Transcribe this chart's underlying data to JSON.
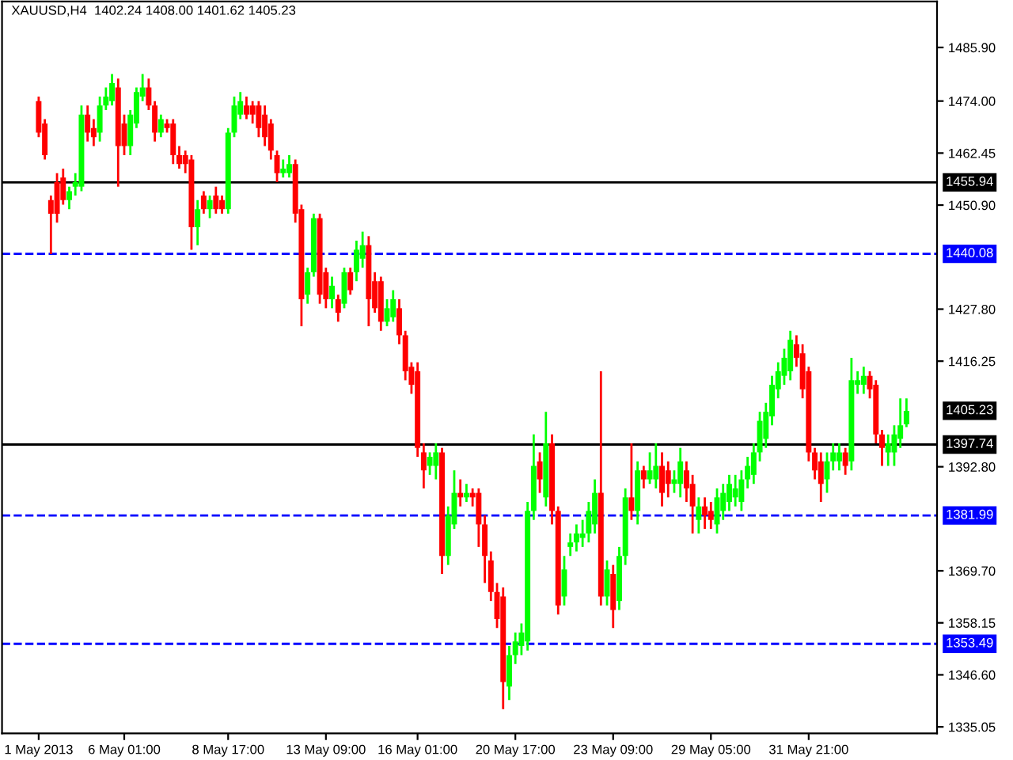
{
  "chart_data": {
    "type": "candlestick",
    "title": "XAUUSD,H4  1402.24 1408.00 1401.62 1405.23",
    "categories": [
      "1 May 2013",
      null,
      null,
      null,
      null,
      null,
      null,
      null,
      null,
      null,
      null,
      null,
      null,
      null,
      "6 May 01:00",
      null,
      null,
      null,
      null,
      null,
      null,
      null,
      null,
      null,
      null,
      null,
      null,
      null,
      null,
      null,
      null,
      "8 May 17:00",
      null,
      null,
      null,
      null,
      null,
      null,
      null,
      null,
      null,
      null,
      null,
      null,
      null,
      null,
      null,
      "13 May 09:00",
      null,
      null,
      null,
      null,
      null,
      null,
      null,
      null,
      null,
      null,
      null,
      null,
      null,
      null,
      "16 May 01:00",
      null,
      null,
      null,
      null,
      null,
      null,
      null,
      null,
      null,
      null,
      null,
      null,
      null,
      null,
      null,
      "20 May 17:00",
      null,
      null,
      null,
      null,
      null,
      null,
      null,
      null,
      null,
      null,
      null,
      null,
      null,
      null,
      null,
      "23 May 09:00",
      null,
      null,
      null,
      null,
      null,
      null,
      null,
      null,
      null,
      null,
      null,
      null,
      null,
      null,
      null,
      "29 May 05:00",
      null,
      null,
      null,
      null,
      null,
      null,
      null,
      null,
      null,
      null,
      null,
      null,
      null,
      null,
      null,
      "31 May 21:00",
      null,
      null,
      null,
      null,
      null,
      null,
      null,
      null,
      null,
      null,
      null,
      null,
      null,
      null,
      null,
      null
    ],
    "ohlc": [
      [
        1474,
        1475,
        1466,
        1467
      ],
      [
        1469,
        1470,
        1461,
        1462
      ],
      [
        1452,
        1453,
        1440,
        1449
      ],
      [
        1456,
        1458,
        1447,
        1449
      ],
      [
        1457,
        1459,
        1451,
        1452
      ],
      [
        1452,
        1455,
        1450,
        1454
      ],
      [
        1455,
        1458,
        1453,
        1456
      ],
      [
        1455,
        1473,
        1454,
        1471
      ],
      [
        1471,
        1473,
        1465,
        1467
      ],
      [
        1468,
        1470,
        1464,
        1466
      ],
      [
        1467,
        1475,
        1465,
        1473
      ],
      [
        1473,
        1477,
        1472,
        1475
      ],
      [
        1474,
        1480,
        1473,
        1478
      ],
      [
        1477,
        1479,
        1455,
        1464
      ],
      [
        1469,
        1471,
        1462,
        1464
      ],
      [
        1464,
        1472,
        1462,
        1471
      ],
      [
        1469,
        1477,
        1468,
        1476
      ],
      [
        1475,
        1480,
        1474,
        1477
      ],
      [
        1477,
        1479,
        1472,
        1473
      ],
      [
        1473,
        1474,
        1465,
        1467
      ],
      [
        1467,
        1471,
        1466,
        1470
      ],
      [
        1469,
        1470,
        1467,
        1468
      ],
      [
        1469,
        1470,
        1460,
        1462
      ],
      [
        1462,
        1464,
        1459,
        1460
      ],
      [
        1462,
        1463,
        1458,
        1460
      ],
      [
        1461,
        1462,
        1441,
        1446
      ],
      [
        1446,
        1452,
        1442,
        1450
      ],
      [
        1453,
        1454,
        1449,
        1450
      ],
      [
        1450,
        1453,
        1448,
        1452
      ],
      [
        1453,
        1455,
        1449,
        1450
      ],
      [
        1452,
        1453,
        1449,
        1450
      ],
      [
        1450,
        1468,
        1449,
        1467
      ],
      [
        1467,
        1475,
        1466,
        1473
      ],
      [
        1471,
        1476,
        1470,
        1474
      ],
      [
        1473,
        1475,
        1470,
        1471
      ],
      [
        1473,
        1474,
        1469,
        1471
      ],
      [
        1473,
        1474,
        1466,
        1468
      ],
      [
        1471,
        1473,
        1464,
        1466
      ],
      [
        1469,
        1470,
        1461,
        1463
      ],
      [
        1462,
        1463,
        1456,
        1458
      ],
      [
        1458,
        1461,
        1457,
        1459
      ],
      [
        1458,
        1462,
        1457,
        1460
      ],
      [
        1460,
        1461,
        1447,
        1449
      ],
      [
        1450,
        1451,
        1424,
        1430
      ],
      [
        1431,
        1437,
        1429,
        1436
      ],
      [
        1436,
        1449,
        1435,
        1448
      ],
      [
        1448,
        1449,
        1429,
        1431
      ],
      [
        1436,
        1437,
        1428,
        1430
      ],
      [
        1430,
        1435,
        1428,
        1433
      ],
      [
        1430,
        1431,
        1425,
        1427
      ],
      [
        1429,
        1437,
        1428,
        1436
      ],
      [
        1436,
        1437,
        1431,
        1432
      ],
      [
        1436,
        1443,
        1434,
        1441
      ],
      [
        1439,
        1445,
        1437,
        1442
      ],
      [
        1442,
        1444,
        1424,
        1430
      ],
      [
        1434,
        1436,
        1427,
        1428
      ],
      [
        1434,
        1435,
        1423,
        1425
      ],
      [
        1425,
        1430,
        1424,
        1428
      ],
      [
        1426,
        1432,
        1425,
        1430
      ],
      [
        1428,
        1430,
        1420,
        1422
      ],
      [
        1422,
        1423,
        1412,
        1414
      ],
      [
        1415,
        1416,
        1409,
        1411
      ],
      [
        1414,
        1416,
        1395,
        1397
      ],
      [
        1396,
        1398,
        1388,
        1392
      ],
      [
        1393,
        1396,
        1391,
        1395
      ],
      [
        1393,
        1398,
        1390,
        1396
      ],
      [
        1396,
        1397,
        1369,
        1373
      ],
      [
        1373,
        1384,
        1371,
        1382
      ],
      [
        1380,
        1392,
        1379,
        1387
      ],
      [
        1387,
        1390,
        1384,
        1386
      ],
      [
        1386,
        1389,
        1385,
        1387
      ],
      [
        1387,
        1388,
        1384,
        1386
      ],
      [
        1387,
        1388,
        1375,
        1380
      ],
      [
        1380,
        1382,
        1367,
        1373
      ],
      [
        1372,
        1374,
        1363,
        1365
      ],
      [
        1365,
        1367,
        1357,
        1359
      ],
      [
        1364,
        1366,
        1339,
        1345
      ],
      [
        1344,
        1353,
        1341,
        1351
      ],
      [
        1351,
        1356,
        1349,
        1354
      ],
      [
        1353,
        1358,
        1351,
        1356
      ],
      [
        1354,
        1385,
        1352,
        1383
      ],
      [
        1383,
        1400,
        1381,
        1393
      ],
      [
        1394,
        1396,
        1387,
        1390
      ],
      [
        1386,
        1405,
        1384,
        1398
      ],
      [
        1398,
        1400,
        1380,
        1383
      ],
      [
        1383,
        1384,
        1360,
        1362
      ],
      [
        1364,
        1373,
        1362,
        1370
      ],
      [
        1375,
        1378,
        1373,
        1376
      ],
      [
        1376,
        1380,
        1374,
        1378
      ],
      [
        1377,
        1381,
        1375,
        1378
      ],
      [
        1378,
        1385,
        1376,
        1383
      ],
      [
        1380,
        1390,
        1378,
        1387
      ],
      [
        1387,
        1414,
        1362,
        1364
      ],
      [
        1364,
        1372,
        1362,
        1370
      ],
      [
        1369,
        1371,
        1357,
        1361
      ],
      [
        1363,
        1375,
        1361,
        1373
      ],
      [
        1373,
        1388,
        1371,
        1386
      ],
      [
        1386,
        1398,
        1381,
        1383
      ],
      [
        1383,
        1394,
        1380,
        1392
      ],
      [
        1392,
        1393,
        1388,
        1390
      ],
      [
        1390,
        1396,
        1389,
        1392
      ],
      [
        1390,
        1398,
        1388,
        1393
      ],
      [
        1393,
        1396,
        1384,
        1387
      ],
      [
        1392,
        1394,
        1386,
        1389
      ],
      [
        1389,
        1392,
        1387,
        1390
      ],
      [
        1389,
        1397,
        1386,
        1394
      ],
      [
        1392,
        1394,
        1385,
        1388
      ],
      [
        1389,
        1391,
        1378,
        1384
      ],
      [
        1381,
        1386,
        1378,
        1384
      ],
      [
        1384,
        1386,
        1379,
        1382
      ],
      [
        1383,
        1385,
        1379,
        1381
      ],
      [
        1380,
        1388,
        1378,
        1386
      ],
      [
        1383,
        1389,
        1381,
        1387
      ],
      [
        1385,
        1391,
        1383,
        1389
      ],
      [
        1386,
        1391,
        1384,
        1388
      ],
      [
        1385,
        1392,
        1383,
        1390
      ],
      [
        1390,
        1395,
        1388,
        1393
      ],
      [
        1391,
        1398,
        1389,
        1396
      ],
      [
        1396,
        1405,
        1394,
        1403
      ],
      [
        1399,
        1407,
        1397,
        1405
      ],
      [
        1404,
        1413,
        1402,
        1411
      ],
      [
        1410,
        1416,
        1408,
        1414
      ],
      [
        1413,
        1419,
        1411,
        1417
      ],
      [
        1414,
        1423,
        1412,
        1421
      ],
      [
        1420,
        1422,
        1415,
        1417
      ],
      [
        1418,
        1420,
        1408,
        1410
      ],
      [
        1414,
        1415,
        1394,
        1396
      ],
      [
        1396,
        1397,
        1390,
        1392
      ],
      [
        1394,
        1396,
        1385,
        1389
      ],
      [
        1390,
        1396,
        1387,
        1394
      ],
      [
        1394,
        1398,
        1392,
        1396
      ],
      [
        1394,
        1398,
        1392,
        1396
      ],
      [
        1396,
        1397,
        1391,
        1393
      ],
      [
        1394,
        1417,
        1392,
        1412
      ],
      [
        1411,
        1414,
        1409,
        1412
      ],
      [
        1411,
        1415,
        1409,
        1413
      ],
      [
        1413,
        1414,
        1408,
        1410
      ],
      [
        1411,
        1412,
        1398,
        1400
      ],
      [
        1400,
        1401,
        1393,
        1397
      ],
      [
        1396,
        1400,
        1393,
        1398
      ],
      [
        1396,
        1402,
        1393,
        1400
      ],
      [
        1399,
        1408,
        1397,
        1402
      ],
      [
        1402.24,
        1408.0,
        1401.62,
        1405.23
      ]
    ],
    "colors": [
      "#ff0000",
      "#ff0000",
      "#ff0000",
      "#ff0000",
      "#ff0000",
      "#00ff00",
      "#00ff00",
      "#00ff00",
      "#ff0000",
      "#ff0000",
      "#00ff00",
      "#00ff00",
      "#00ff00",
      "#ff0000",
      "#ff0000",
      "#00ff00",
      "#00ff00",
      "#00ff00",
      "#ff0000",
      "#ff0000",
      "#00ff00",
      "#ff0000",
      "#ff0000",
      "#ff0000",
      "#ff0000",
      "#ff0000",
      "#00ff00",
      "#ff0000",
      "#00ff00",
      "#ff0000",
      "#ff0000",
      "#00ff00",
      "#00ff00",
      "#00ff00",
      "#ff0000",
      "#ff0000",
      "#ff0000",
      "#ff0000",
      "#ff0000",
      "#ff0000",
      "#00ff00",
      "#00ff00",
      "#ff0000",
      "#ff0000",
      "#00ff00",
      "#00ff00",
      "#ff0000",
      "#ff0000",
      "#00ff00",
      "#ff0000",
      "#00ff00",
      "#ff0000",
      "#00ff00",
      "#00ff00",
      "#ff0000",
      "#ff0000",
      "#ff0000",
      "#00ff00",
      "#00ff00",
      "#ff0000",
      "#ff0000",
      "#ff0000",
      "#ff0000",
      "#ff0000",
      "#00ff00",
      "#00ff00",
      "#ff0000",
      "#00ff00",
      "#00ff00",
      "#ff0000",
      "#00ff00",
      "#ff0000",
      "#ff0000",
      "#ff0000",
      "#ff0000",
      "#ff0000",
      "#ff0000",
      "#00ff00",
      "#00ff00",
      "#00ff00",
      "#00ff00",
      "#00ff00",
      "#ff0000",
      "#00ff00",
      "#ff0000",
      "#ff0000",
      "#00ff00",
      "#00ff00",
      "#00ff00",
      "#00ff00",
      "#00ff00",
      "#00ff00",
      "#ff0000",
      "#00ff00",
      "#ff0000",
      "#00ff00",
      "#00ff00",
      "#ff0000",
      "#00ff00",
      "#ff0000",
      "#00ff00",
      "#00ff00",
      "#ff0000",
      "#ff0000",
      "#00ff00",
      "#00ff00",
      "#ff0000",
      "#ff0000",
      "#00ff00",
      "#ff0000",
      "#ff0000",
      "#00ff00",
      "#00ff00",
      "#00ff00",
      "#00ff00",
      "#00ff00",
      "#00ff00",
      "#00ff00",
      "#00ff00",
      "#00ff00",
      "#00ff00",
      "#00ff00",
      "#00ff00",
      "#00ff00",
      "#ff0000",
      "#ff0000",
      "#ff0000",
      "#ff0000",
      "#ff0000",
      "#00ff00",
      "#00ff00",
      "#00ff00",
      "#ff0000",
      "#00ff00",
      "#00ff00",
      "#00ff00",
      "#ff0000",
      "#ff0000",
      "#ff0000",
      "#00ff00",
      "#00ff00",
      "#00ff00",
      "#00ff00"
    ],
    "ylim": [
      1333.6,
      1496.1
    ],
    "yticks": [
      {
        "value": 1335.05,
        "label": "1335.05"
      },
      {
        "value": 1346.6,
        "label": "1346.60"
      },
      {
        "value": 1358.15,
        "label": "1358.15"
      },
      {
        "value": 1369.7,
        "label": "1369.70"
      },
      {
        "value": 1392.8,
        "label": "1392.80"
      },
      {
        "value": 1416.25,
        "label": "1416.25"
      },
      {
        "value": 1427.8,
        "label": "1427.80"
      },
      {
        "value": 1450.9,
        "label": "1450.90"
      },
      {
        "value": 1462.45,
        "label": "1462.45"
      },
      {
        "value": 1474.0,
        "label": "1474.00"
      },
      {
        "value": 1485.9,
        "label": "1485.90"
      }
    ],
    "ref_lines": [
      {
        "axis": "y",
        "value": 1455.94,
        "label": "1455.94",
        "color": "#000000",
        "line_style": "solid"
      },
      {
        "axis": "y",
        "value": 1440.08,
        "label": "1440.08",
        "color": "#0000ff",
        "line_style": "dashed"
      },
      {
        "axis": "y",
        "value": 1397.74,
        "label": "1397.74",
        "color": "#000000",
        "line_style": "solid"
      },
      {
        "axis": "y",
        "value": 1381.99,
        "label": "1381.99",
        "color": "#0000ff",
        "line_style": "dashed"
      },
      {
        "axis": "y",
        "value": 1353.49,
        "label": "1353.49",
        "color": "#0000ff",
        "line_style": "dashed"
      }
    ],
    "annotations": [
      "1405.23"
    ],
    "grid": false,
    "legend": false
  }
}
